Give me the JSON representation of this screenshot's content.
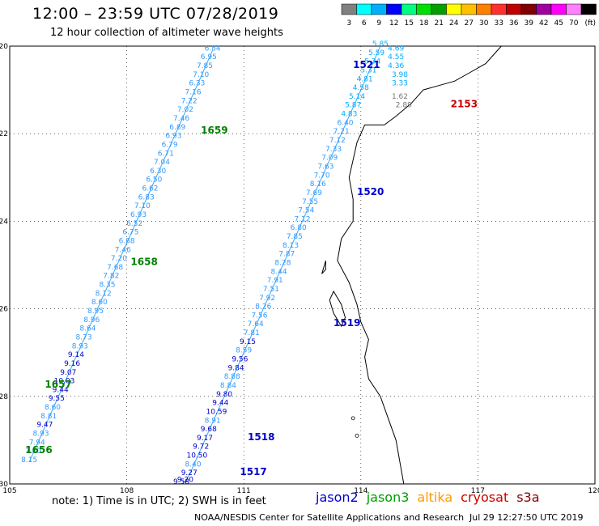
{
  "header": {
    "title": "12:00 – 23:59 UTC 07/28/2019",
    "subtitle": "12 hour collection of altimeter wave heights"
  },
  "scale": {
    "colors": [
      "#808080",
      "#00ffff",
      "#00b0ff",
      "#0000ff",
      "#00ff80",
      "#00e000",
      "#00a000",
      "#ffff00",
      "#ffc000",
      "#ff8000",
      "#ff3030",
      "#c00000",
      "#800000",
      "#a000a0",
      "#ff00ff",
      "#ff80ff",
      "#000000"
    ],
    "labels": [
      "3",
      "6",
      "9",
      "12",
      "15",
      "18",
      "21",
      "24",
      "27",
      "30",
      "33",
      "36",
      "39",
      "42",
      "45",
      "70",
      "(ft)"
    ]
  },
  "axes": {
    "lat_labels": [
      "-20",
      "-22",
      "-24",
      "-26",
      "-28",
      "-30"
    ],
    "lon_labels": [
      "105",
      "108",
      "111",
      "114",
      "117",
      "120"
    ]
  },
  "map": {
    "track_colors": {
      "jason2": "#0000cc",
      "jason3": "#006600",
      "altika": "#ff8c00",
      "cryosat": "#cc0000",
      "s3a": "#8b0000",
      "high": "#00aaff",
      "mid": "#3399ff",
      "low": "#0000cc",
      "gray": "#777777"
    },
    "time_labels": [
      {
        "text": "1659",
        "lon": 109.9,
        "lat": -22.0,
        "color": "#008000"
      },
      {
        "text": "1658",
        "lon": 108.1,
        "lat": -25.0,
        "color": "#008000"
      },
      {
        "text": "1657",
        "lon": 105.9,
        "lat": -27.8,
        "color": "#008000"
      },
      {
        "text": "1656",
        "lon": 105.4,
        "lat": -29.3,
        "color": "#008000"
      },
      {
        "text": "1521",
        "lon": 113.8,
        "lat": -20.5,
        "color": "#0000cc"
      },
      {
        "text": "1520",
        "lon": 113.9,
        "lat": -23.4,
        "color": "#0000cc"
      },
      {
        "text": "1519",
        "lon": 113.3,
        "lat": -26.4,
        "color": "#0000cc"
      },
      {
        "text": "1518",
        "lon": 111.1,
        "lat": -29.0,
        "color": "#0000cc"
      },
      {
        "text": "1517",
        "lon": 110.9,
        "lat": -29.8,
        "color": "#0000cc"
      },
      {
        "text": "2153",
        "lon": 116.3,
        "lat": -21.4,
        "color": "#cc0000"
      }
    ],
    "track_west": {
      "points": [
        {
          "lon": 110.2,
          "lat": -20.1,
          "v": "6.84"
        },
        {
          "lon": 110.1,
          "lat": -20.3,
          "v": "6.95"
        },
        {
          "lon": 110.0,
          "lat": -20.5,
          "v": "7.85"
        },
        {
          "lon": 109.9,
          "lat": -20.7,
          "v": "7.10"
        },
        {
          "lon": 109.8,
          "lat": -20.9,
          "v": "6.33"
        },
        {
          "lon": 109.7,
          "lat": -21.1,
          "v": "7.16"
        },
        {
          "lon": 109.6,
          "lat": -21.3,
          "v": "7.22"
        },
        {
          "lon": 109.5,
          "lat": -21.5,
          "v": "7.02"
        },
        {
          "lon": 109.4,
          "lat": -21.7,
          "v": "7.46"
        },
        {
          "lon": 109.3,
          "lat": -21.9,
          "v": "6.89"
        },
        {
          "lon": 109.2,
          "lat": -22.1,
          "v": "6.93"
        },
        {
          "lon": 109.1,
          "lat": -22.3,
          "v": "6.79"
        },
        {
          "lon": 109.0,
          "lat": -22.5,
          "v": "6.71"
        },
        {
          "lon": 108.9,
          "lat": -22.7,
          "v": "7.04"
        },
        {
          "lon": 108.8,
          "lat": -22.9,
          "v": "6.30"
        },
        {
          "lon": 108.7,
          "lat": -23.1,
          "v": "6.50"
        },
        {
          "lon": 108.6,
          "lat": -23.3,
          "v": "6.62"
        },
        {
          "lon": 108.5,
          "lat": -23.5,
          "v": "6.83"
        },
        {
          "lon": 108.4,
          "lat": -23.7,
          "v": "7.10"
        },
        {
          "lon": 108.3,
          "lat": -23.9,
          "v": "6.93"
        },
        {
          "lon": 108.2,
          "lat": -24.1,
          "v": "6.52"
        },
        {
          "lon": 108.1,
          "lat": -24.3,
          "v": "6.75"
        },
        {
          "lon": 108.0,
          "lat": -24.5,
          "v": "6.88"
        },
        {
          "lon": 107.9,
          "lat": -24.7,
          "v": "7.46"
        },
        {
          "lon": 107.8,
          "lat": -24.9,
          "v": "7.20"
        },
        {
          "lon": 107.7,
          "lat": -25.1,
          "v": "7.68"
        },
        {
          "lon": 107.6,
          "lat": -25.3,
          "v": "7.82"
        },
        {
          "lon": 107.5,
          "lat": -25.5,
          "v": "8.35"
        },
        {
          "lon": 107.4,
          "lat": -25.7,
          "v": "8.12"
        },
        {
          "lon": 107.3,
          "lat": -25.9,
          "v": "8.60"
        },
        {
          "lon": 107.2,
          "lat": -26.1,
          "v": "8.95"
        },
        {
          "lon": 107.1,
          "lat": -26.3,
          "v": "8.96"
        },
        {
          "lon": 107.0,
          "lat": -26.5,
          "v": "8.64"
        },
        {
          "lon": 106.9,
          "lat": -26.7,
          "v": "8.73"
        },
        {
          "lon": 106.8,
          "lat": -26.9,
          "v": "8.93"
        },
        {
          "lon": 106.7,
          "lat": -27.1,
          "v": "9.14"
        },
        {
          "lon": 106.6,
          "lat": -27.3,
          "v": "9.16"
        },
        {
          "lon": 106.5,
          "lat": -27.5,
          "v": "9.07"
        },
        {
          "lon": 106.4,
          "lat": -27.7,
          "v": "10.03"
        },
        {
          "lon": 106.3,
          "lat": -27.9,
          "v": "9.44"
        },
        {
          "lon": 106.2,
          "lat": -28.1,
          "v": "9.55"
        },
        {
          "lon": 106.1,
          "lat": -28.3,
          "v": "8.60"
        },
        {
          "lon": 106.0,
          "lat": -28.5,
          "v": "8.81"
        },
        {
          "lon": 105.9,
          "lat": -28.7,
          "v": "9.47"
        },
        {
          "lon": 105.8,
          "lat": -28.9,
          "v": "8.93"
        },
        {
          "lon": 105.7,
          "lat": -29.1,
          "v": "7.94"
        },
        {
          "lon": 105.6,
          "lat": -29.3,
          "v": "7.80"
        },
        {
          "lon": 105.5,
          "lat": -29.5,
          "v": "8.15"
        }
      ]
    },
    "track_east": {
      "points": [
        {
          "lon": 114.5,
          "lat": -20.0,
          "v": "5.85"
        },
        {
          "lon": 114.4,
          "lat": -20.2,
          "v": "5.59"
        },
        {
          "lon": 114.3,
          "lat": -20.4,
          "v": "5.34"
        },
        {
          "lon": 114.2,
          "lat": -20.6,
          "v": "5.31"
        },
        {
          "lon": 114.1,
          "lat": -20.8,
          "v": "4.81"
        },
        {
          "lon": 114.0,
          "lat": -21.0,
          "v": "4.58"
        },
        {
          "lon": 113.9,
          "lat": -21.2,
          "v": "5.14"
        },
        {
          "lon": 113.8,
          "lat": -21.4,
          "v": "5.87"
        },
        {
          "lon": 113.7,
          "lat": -21.6,
          "v": "4.83"
        },
        {
          "lon": 113.6,
          "lat": -21.8,
          "v": "6.40"
        },
        {
          "lon": 113.5,
          "lat": -22.0,
          "v": "7.21"
        },
        {
          "lon": 113.4,
          "lat": -22.2,
          "v": "7.12"
        },
        {
          "lon": 113.3,
          "lat": -22.4,
          "v": "7.33"
        },
        {
          "lon": 113.2,
          "lat": -22.6,
          "v": "7.09"
        },
        {
          "lon": 113.1,
          "lat": -22.8,
          "v": "7.63"
        },
        {
          "lon": 113.0,
          "lat": -23.0,
          "v": "7.70"
        },
        {
          "lon": 112.9,
          "lat": -23.2,
          "v": "8.16"
        },
        {
          "lon": 112.8,
          "lat": -23.4,
          "v": "7.69"
        },
        {
          "lon": 112.7,
          "lat": -23.6,
          "v": "7.55"
        },
        {
          "lon": 112.6,
          "lat": -23.8,
          "v": "7.54"
        },
        {
          "lon": 112.5,
          "lat": -24.0,
          "v": "7.12"
        },
        {
          "lon": 112.4,
          "lat": -24.2,
          "v": "6.80"
        },
        {
          "lon": 112.3,
          "lat": -24.4,
          "v": "7.85"
        },
        {
          "lon": 112.2,
          "lat": -24.6,
          "v": "8.13"
        },
        {
          "lon": 112.1,
          "lat": -24.8,
          "v": "7.87"
        },
        {
          "lon": 112.0,
          "lat": -25.0,
          "v": "8.28"
        },
        {
          "lon": 111.9,
          "lat": -25.2,
          "v": "8.44"
        },
        {
          "lon": 111.8,
          "lat": -25.4,
          "v": "7.91"
        },
        {
          "lon": 111.7,
          "lat": -25.6,
          "v": "7.51"
        },
        {
          "lon": 111.6,
          "lat": -25.8,
          "v": "7.92"
        },
        {
          "lon": 111.5,
          "lat": -26.0,
          "v": "8.26"
        },
        {
          "lon": 111.4,
          "lat": -26.2,
          "v": "7.56"
        },
        {
          "lon": 111.3,
          "lat": -26.4,
          "v": "7.64"
        },
        {
          "lon": 111.2,
          "lat": -26.6,
          "v": "7.81"
        },
        {
          "lon": 111.1,
          "lat": -26.8,
          "v": "9.15"
        },
        {
          "lon": 111.0,
          "lat": -27.0,
          "v": "8.59"
        },
        {
          "lon": 110.9,
          "lat": -27.2,
          "v": "9.56"
        },
        {
          "lon": 110.8,
          "lat": -27.4,
          "v": "9.84"
        },
        {
          "lon": 110.7,
          "lat": -27.6,
          "v": "8.88"
        },
        {
          "lon": 110.6,
          "lat": -27.8,
          "v": "8.84"
        },
        {
          "lon": 110.5,
          "lat": -28.0,
          "v": "9.80"
        },
        {
          "lon": 110.4,
          "lat": -28.2,
          "v": "9.44"
        },
        {
          "lon": 110.3,
          "lat": -28.4,
          "v": "10.59"
        },
        {
          "lon": 110.2,
          "lat": -28.6,
          "v": "8.91"
        },
        {
          "lon": 110.1,
          "lat": -28.8,
          "v": "9.68"
        },
        {
          "lon": 110.0,
          "lat": -29.0,
          "v": "9.17"
        },
        {
          "lon": 109.9,
          "lat": -29.2,
          "v": "9.72"
        },
        {
          "lon": 109.8,
          "lat": -29.4,
          "v": "10.50"
        },
        {
          "lon": 109.7,
          "lat": -29.6,
          "v": "8.40"
        },
        {
          "lon": 109.6,
          "lat": -29.8,
          "v": "9.27"
        },
        {
          "lon": 109.5,
          "lat": -29.95,
          "v": "9.20"
        },
        {
          "lon": 109.4,
          "lat": -30.0,
          "v": "9.58"
        }
      ]
    },
    "track_coast": {
      "points": [
        {
          "lon": 114.9,
          "lat": -20.1,
          "v": "4.69"
        },
        {
          "lon": 114.9,
          "lat": -20.3,
          "v": "4.55"
        },
        {
          "lon": 114.9,
          "lat": -20.5,
          "v": "4.36"
        },
        {
          "lon": 115.0,
          "lat": -20.7,
          "v": "3.98"
        },
        {
          "lon": 115.0,
          "lat": -20.9,
          "v": "3.33"
        }
      ],
      "gray": [
        {
          "lon": 115.0,
          "lat": -21.2,
          "v": "1.62"
        },
        {
          "lon": 115.1,
          "lat": -21.4,
          "v": "2.89"
        }
      ]
    }
  },
  "footer": {
    "note": "note:  1) Time is in UTC;  2) SWH is in feet",
    "legend": [
      {
        "label": "jason2",
        "color": "#0000cc"
      },
      {
        "label": "jason3",
        "color": "#00a000"
      },
      {
        "label": "altika",
        "color": "#ff9900"
      },
      {
        "label": "cryosat",
        "color": "#cc0000"
      },
      {
        "label": "s3a",
        "color": "#8b0000"
      }
    ],
    "credit": "NOAA/NESDIS Center for Satellite Applications and Research",
    "timestamp": "Jul 29 12:27:50 UTC 2019"
  }
}
